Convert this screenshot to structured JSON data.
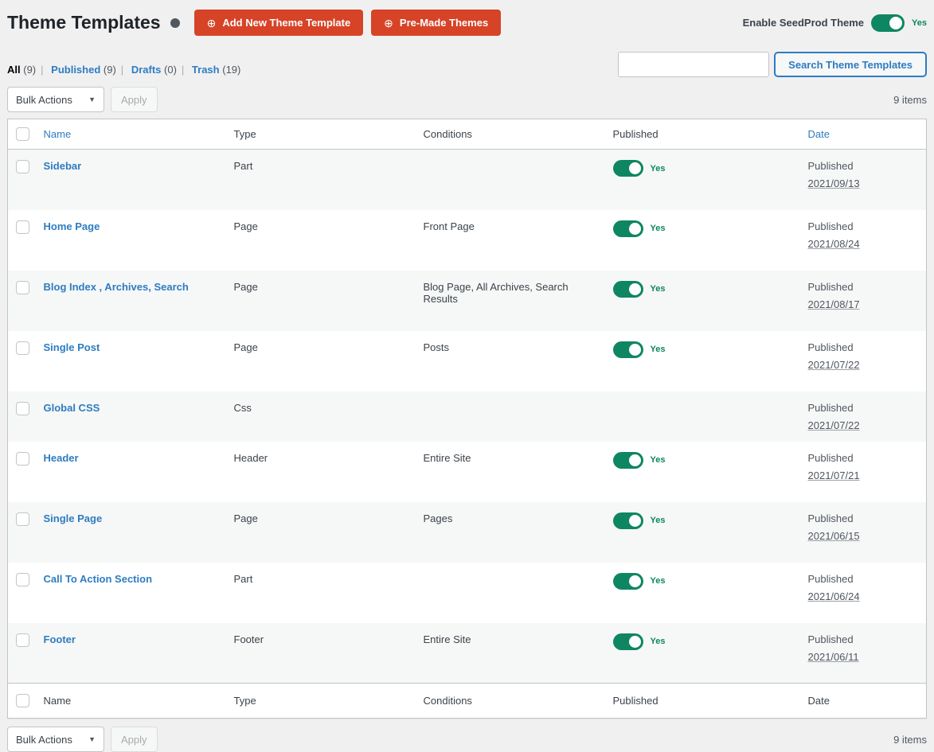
{
  "page": {
    "title": "Theme Templates",
    "add_new_button": "Add New Theme Template",
    "pre_made_button": "Pre-Made Themes",
    "plus_glyph": "⊕",
    "enable_toggle": {
      "label": "Enable SeedProd Theme",
      "state": "Yes"
    }
  },
  "filters": [
    {
      "label": "All",
      "count": "(9)",
      "current": true
    },
    {
      "label": "Published",
      "count": "(9)",
      "current": false
    },
    {
      "label": "Drafts",
      "count": "(0)",
      "current": false
    },
    {
      "label": "Trash",
      "count": "(19)",
      "current": false
    }
  ],
  "search": {
    "value": "",
    "placeholder": "",
    "button_label": "Search Theme Templates"
  },
  "toolbar": {
    "bulk_actions_label": "Bulk Actions",
    "apply_label": "Apply",
    "items_count": "9 items",
    "chevron_glyph": "▼"
  },
  "table": {
    "headers": {
      "name": "Name",
      "type": "Type",
      "conditions": "Conditions",
      "published": "Published",
      "date": "Date"
    },
    "rows": [
      {
        "name": "Sidebar",
        "type": "Part",
        "conditions": "",
        "toggle": true,
        "toggle_label": "Yes",
        "status": "Published",
        "date": "2021/09/13"
      },
      {
        "name": "Home Page",
        "type": "Page",
        "conditions": "Front Page",
        "toggle": true,
        "toggle_label": "Yes",
        "status": "Published",
        "date": "2021/08/24"
      },
      {
        "name": "Blog Index , Archives, Search",
        "type": "Page",
        "conditions": "Blog Page, All Archives, Search Results",
        "toggle": true,
        "toggle_label": "Yes",
        "status": "Published",
        "date": "2021/08/17"
      },
      {
        "name": "Single Post",
        "type": "Page",
        "conditions": "Posts",
        "toggle": true,
        "toggle_label": "Yes",
        "status": "Published",
        "date": "2021/07/22"
      },
      {
        "name": "Global CSS",
        "type": "Css",
        "conditions": "",
        "toggle": false,
        "toggle_label": "",
        "status": "Published",
        "date": "2021/07/22"
      },
      {
        "name": "Header",
        "type": "Header",
        "conditions": "Entire Site",
        "toggle": true,
        "toggle_label": "Yes",
        "status": "Published",
        "date": "2021/07/21"
      },
      {
        "name": "Single Page",
        "type": "Page",
        "conditions": "Pages",
        "toggle": true,
        "toggle_label": "Yes",
        "status": "Published",
        "date": "2021/06/15"
      },
      {
        "name": "Call To Action Section",
        "type": "Part",
        "conditions": "",
        "toggle": true,
        "toggle_label": "Yes",
        "status": "Published",
        "date": "2021/06/24"
      },
      {
        "name": "Footer",
        "type": "Footer",
        "conditions": "Entire Site",
        "toggle": true,
        "toggle_label": "Yes",
        "status": "Published",
        "date": "2021/06/11"
      }
    ]
  },
  "colors": {
    "accent_orange": "#d64327",
    "toggle_green": "#0f8662",
    "link_blue": "#2e7cc1",
    "page_background": "#f0f0f1",
    "row_stripe": "#f6f7f7",
    "table_border": "#c3c4c7"
  }
}
